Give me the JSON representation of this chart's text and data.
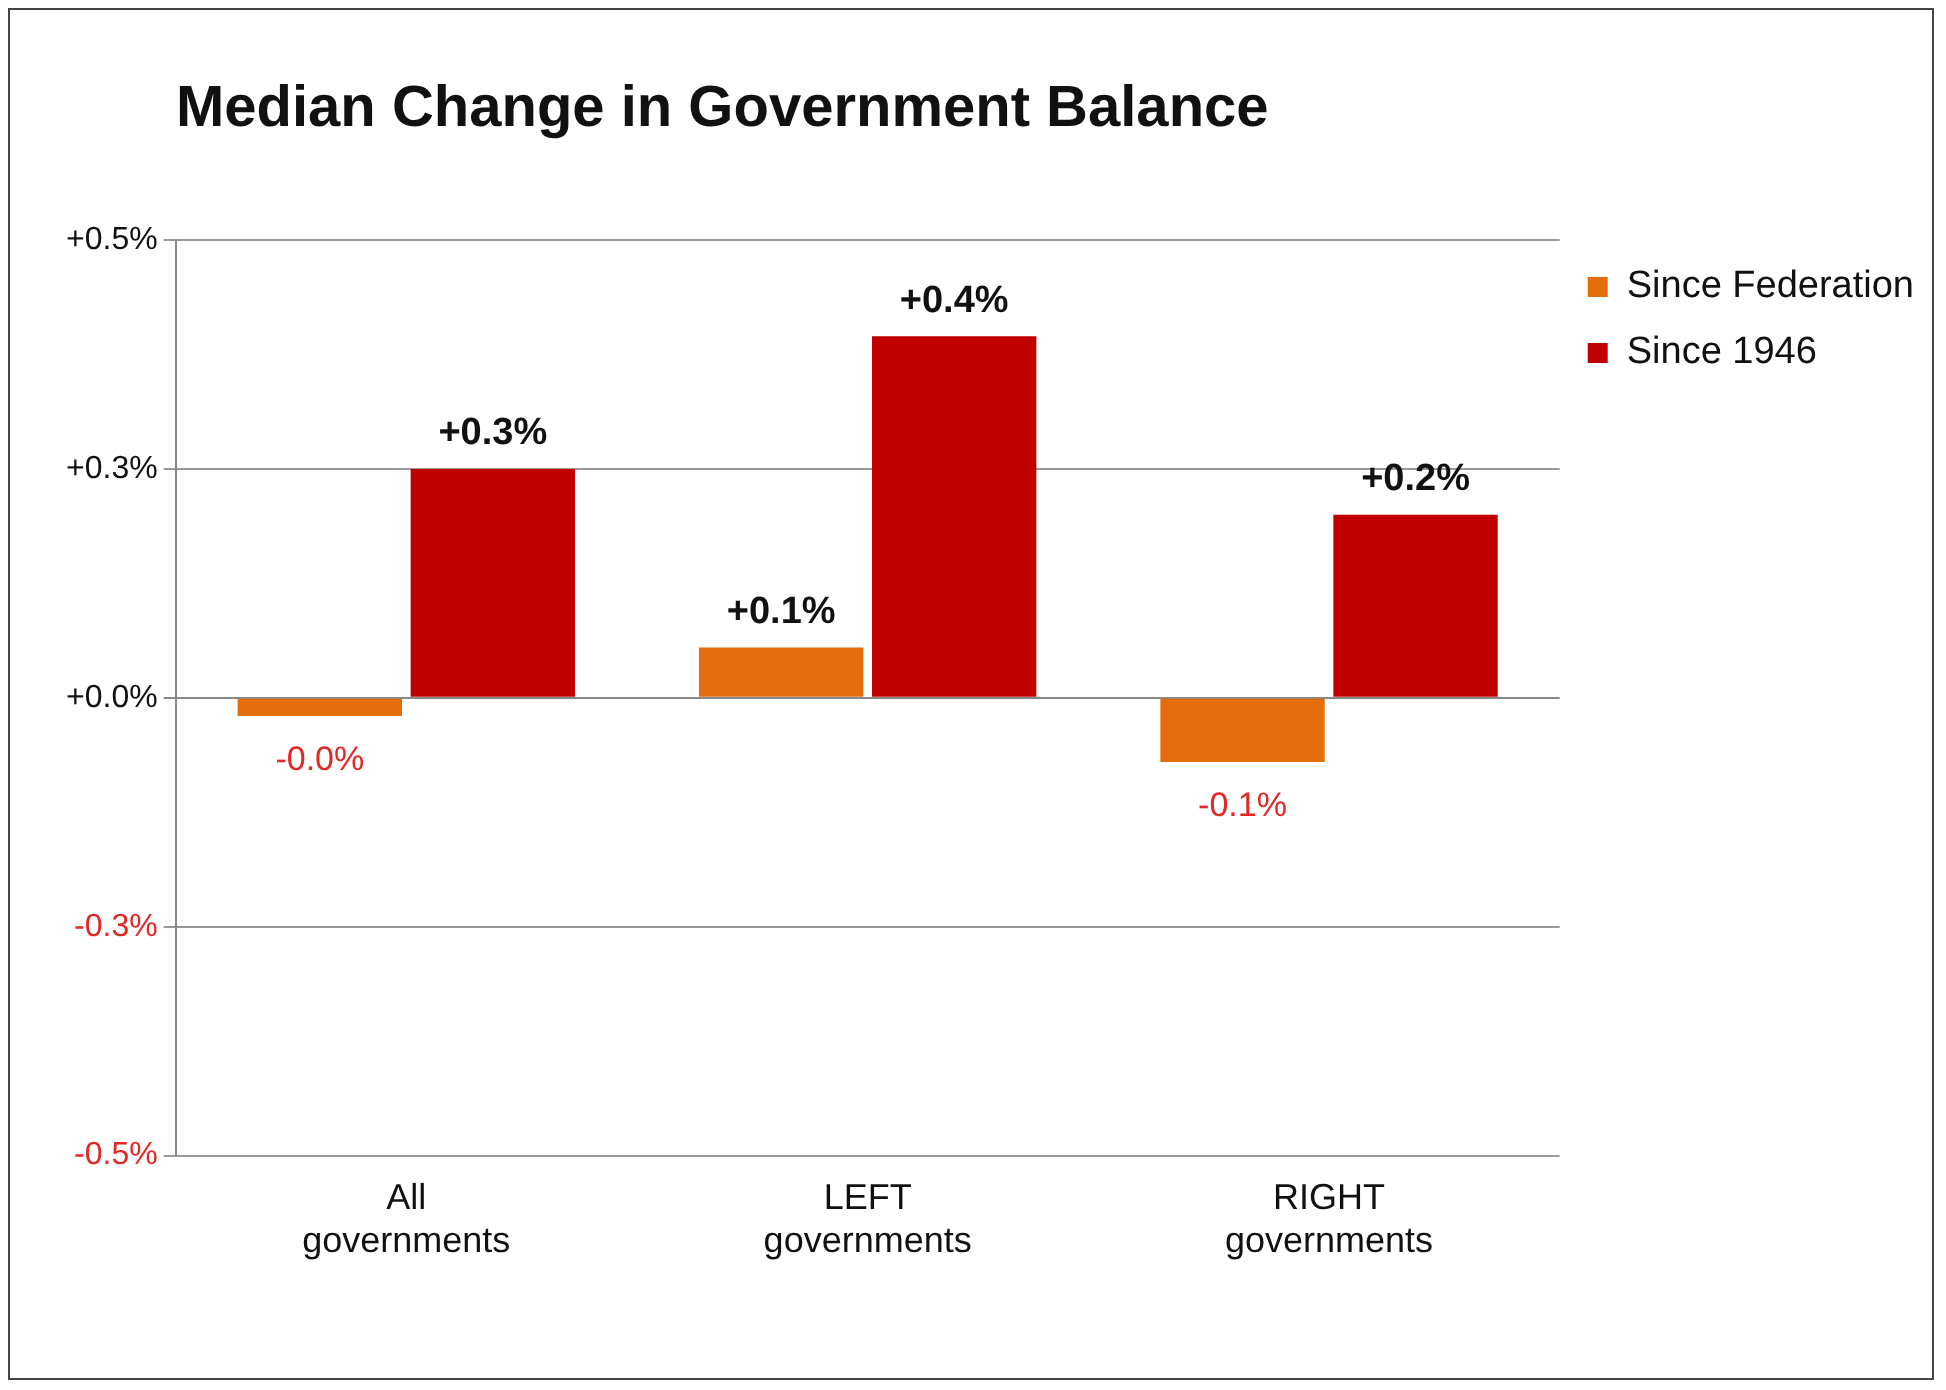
{
  "chart_data": {
    "type": "bar",
    "title": "Median Change in Government Balance",
    "categories": [
      "All governments",
      "LEFT governments",
      "RIGHT governments"
    ],
    "series": [
      {
        "name": "Since Federation",
        "color": "#e46c0a",
        "values": [
          -0.02,
          0.055,
          -0.07
        ],
        "value_labels": [
          "-0.0%",
          "+0.1%",
          "-0.1%"
        ]
      },
      {
        "name": "Since 1946",
        "color": "#c00000",
        "values": [
          0.25,
          0.395,
          0.2
        ],
        "value_labels": [
          "+0.3%",
          "+0.4%",
          "+0.2%"
        ]
      }
    ],
    "ylim": [
      -0.5,
      0.5
    ],
    "yticks": [
      {
        "value": -0.5,
        "label": "-0.5%"
      },
      {
        "value": -0.25,
        "label": "-0.3%"
      },
      {
        "value": 0,
        "label": "+0.0%"
      },
      {
        "value": 0.25,
        "label": "+0.3%"
      },
      {
        "value": 0.5,
        "label": "+0.5%"
      }
    ],
    "grid": "y",
    "legend": "right"
  }
}
